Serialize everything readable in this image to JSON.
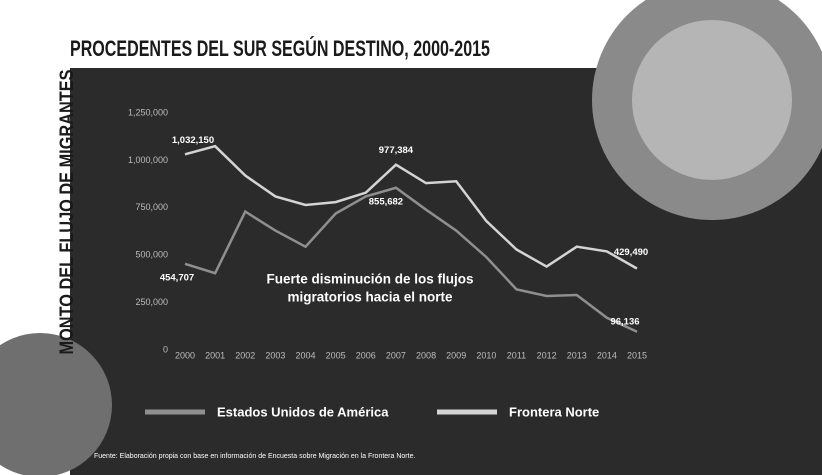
{
  "chart_data": {
    "type": "line",
    "title": "PROCEDENTES DEL SUR SEGÚN DESTINO, 2000-2015",
    "y_label": "MONTO DEL FLUJO DE MIGRANTES",
    "annotation": [
      "Fuerte disminución de los flujos",
      "migratorios hacia el norte"
    ],
    "source": "Fuente: Elaboración propia con base en información de Encuesta sobre Migración en la Frontera Norte.",
    "categories": [
      "2000",
      "2001",
      "2002",
      "2003",
      "2004",
      "2005",
      "2006",
      "2007",
      "2008",
      "2009",
      "2010",
      "2011",
      "2012",
      "2013",
      "2014",
      "2015"
    ],
    "series": [
      {
        "name": "Estados Unidos de América",
        "color": "#8f8f8f",
        "values": [
          454707,
          405000,
          730000,
          630000,
          545000,
          720000,
          810000,
          855682,
          740000,
          630000,
          490000,
          320000,
          285000,
          290000,
          170000,
          96136
        ],
        "value_labels": [
          "454,707",
          null,
          null,
          null,
          null,
          null,
          null,
          "855,682",
          null,
          null,
          null,
          null,
          null,
          null,
          null,
          "96,136"
        ]
      },
      {
        "name": "Frontera Norte",
        "color": "#d4d4d4",
        "values": [
          1032150,
          1075000,
          920000,
          810000,
          765000,
          780000,
          830000,
          977384,
          880000,
          890000,
          680000,
          530000,
          440000,
          545000,
          520000,
          429490
        ],
        "value_labels": [
          "1,032,150",
          null,
          null,
          null,
          null,
          null,
          null,
          "977,384",
          null,
          null,
          null,
          null,
          null,
          null,
          null,
          "429,490"
        ]
      }
    ],
    "ylim": [
      0,
      1250000
    ],
    "yticks": [
      0,
      {
        "value": 250000,
        "label": "250,000"
      },
      {
        "value": 500000,
        "label": "500,000"
      },
      {
        "value": 750000,
        "label": "750,000"
      },
      {
        "value": 1000000,
        "label": "1,000,000"
      },
      {
        "value": 1250000,
        "label": "1,250,000"
      }
    ],
    "grid": false
  }
}
